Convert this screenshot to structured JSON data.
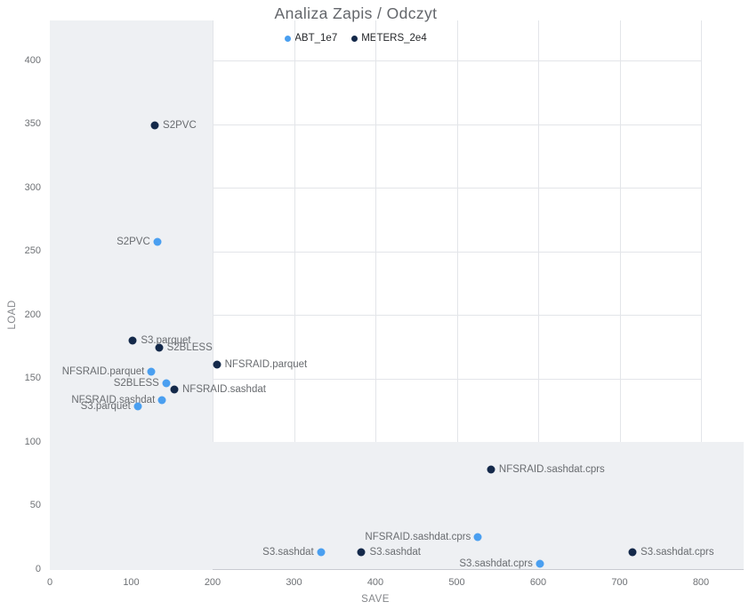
{
  "title": "Analiza Zapis / Odczyt",
  "chart_data": {
    "type": "scatter",
    "title": "Analiza Zapis / Odczyt",
    "xlabel": "SAVE",
    "ylabel": "LOAD",
    "xlim": [
      0,
      853
    ],
    "ylim": [
      0,
      432
    ],
    "x_ticks": [
      0,
      100,
      200,
      300,
      400,
      500,
      600,
      700,
      800
    ],
    "y_ticks": [
      0,
      50,
      100,
      150,
      200,
      250,
      300,
      350,
      400
    ],
    "grid": true,
    "legend_position": "top-center",
    "shaded_regions": [
      {
        "axis": "x",
        "from": 0,
        "to": 200
      },
      {
        "axis": "y",
        "from": 0,
        "to": 100
      }
    ],
    "series": [
      {
        "name": "ABT_1e7",
        "color": "#4a9ff0",
        "points": [
          {
            "x": 132,
            "y": 257,
            "label": "S2PVC",
            "label_side": "left"
          },
          {
            "x": 125,
            "y": 155,
            "label": "NFSRAID.parquet",
            "label_side": "left"
          },
          {
            "x": 143,
            "y": 146,
            "label": "S2BLESS",
            "label_side": "left"
          },
          {
            "x": 138,
            "y": 133,
            "label": "NFSRAID.sashdat",
            "label_side": "left"
          },
          {
            "x": 108,
            "y": 128,
            "label": "S3.parquet",
            "label_side": "left"
          },
          {
            "x": 526,
            "y": 25,
            "label": "NFSRAID.sashdat.cprs",
            "label_side": "left"
          },
          {
            "x": 333,
            "y": 13,
            "label": "S3.sashdat",
            "label_side": "left"
          },
          {
            "x": 602,
            "y": 4,
            "label": "S3.sashdat.cprs",
            "label_side": "left"
          }
        ]
      },
      {
        "name": "METERS_2e4",
        "color": "#14294a",
        "points": [
          {
            "x": 129,
            "y": 349,
            "label": "S2PVC",
            "label_side": "right"
          },
          {
            "x": 102,
            "y": 180,
            "label": "S3.parquet",
            "label_side": "right"
          },
          {
            "x": 134,
            "y": 174,
            "label": "S2BLESS",
            "label_side": "right"
          },
          {
            "x": 205,
            "y": 161,
            "label": "NFSRAID.parquet",
            "label_side": "right"
          },
          {
            "x": 153,
            "y": 141,
            "label": "NFSRAID.sashdat",
            "label_side": "right"
          },
          {
            "x": 542,
            "y": 78,
            "label": "NFSRAID.sashdat.cprs",
            "label_side": "right"
          },
          {
            "x": 383,
            "y": 13,
            "label": "S3.sashdat",
            "label_side": "right"
          },
          {
            "x": 716,
            "y": 13,
            "label": "S3.sashdat.cprs",
            "label_side": "right"
          }
        ]
      }
    ],
    "colors": {
      "shade": "#eef0f3",
      "grid": "#e3e5e9",
      "axis": "#c8cbd1",
      "accent_light": "#4a9ff0",
      "accent_dark": "#14294a"
    }
  }
}
